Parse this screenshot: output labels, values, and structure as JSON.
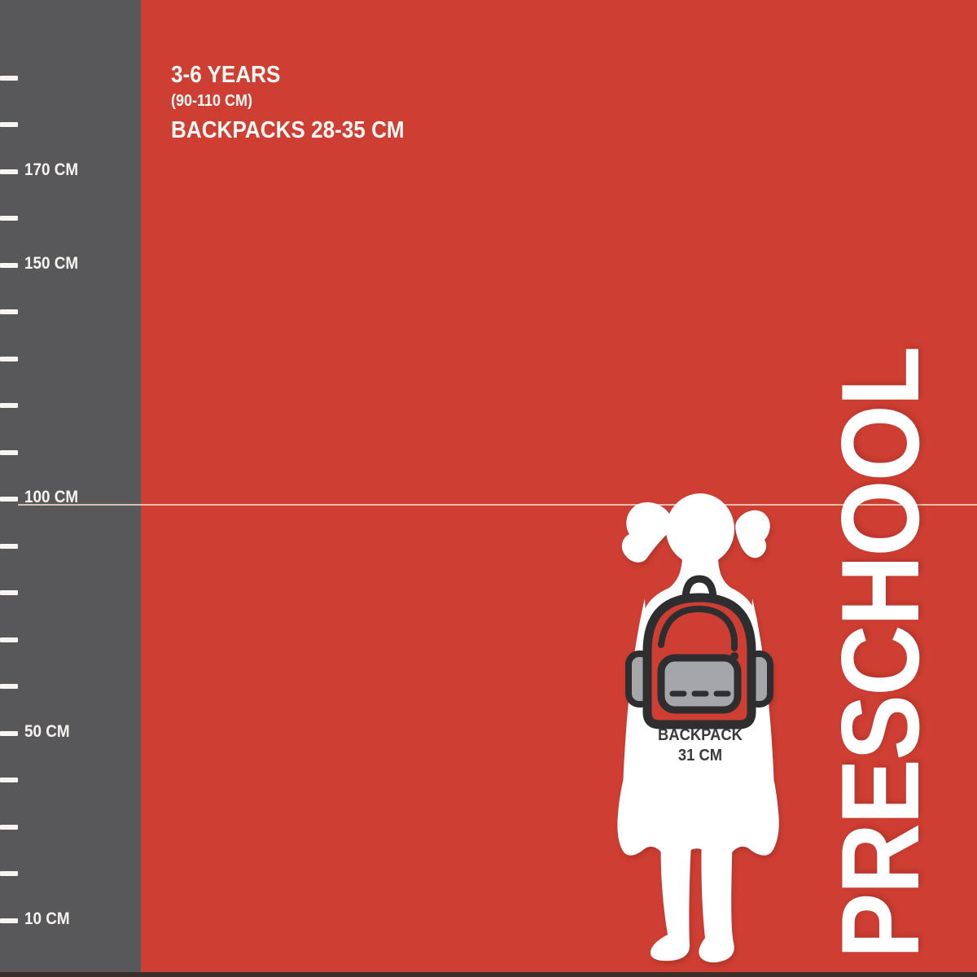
{
  "header": {
    "age_range": "3-6 YEARS",
    "height_range": "(90-110 CM)",
    "backpack_size_range": "BACKPACKS 28-35 CM"
  },
  "category_label": "PRESCHOOL",
  "figure": {
    "backpack_caption_line1": "BACKPACK",
    "backpack_caption_line2": "31 CM"
  },
  "ruler": {
    "unit": "CM",
    "reference_line_cm": 100,
    "ticks": [
      {
        "cm": 190,
        "label": ""
      },
      {
        "cm": 180,
        "label": ""
      },
      {
        "cm": 170,
        "label": "170 CM"
      },
      {
        "cm": 160,
        "label": ""
      },
      {
        "cm": 150,
        "label": "150 CM"
      },
      {
        "cm": 140,
        "label": ""
      },
      {
        "cm": 130,
        "label": ""
      },
      {
        "cm": 120,
        "label": ""
      },
      {
        "cm": 110,
        "label": ""
      },
      {
        "cm": 100,
        "label": "100 CM"
      },
      {
        "cm": 90,
        "label": ""
      },
      {
        "cm": 80,
        "label": ""
      },
      {
        "cm": 70,
        "label": ""
      },
      {
        "cm": 60,
        "label": ""
      },
      {
        "cm": 50,
        "label": "50 CM"
      },
      {
        "cm": 40,
        "label": ""
      },
      {
        "cm": 30,
        "label": ""
      },
      {
        "cm": 20,
        "label": ""
      },
      {
        "cm": 10,
        "label": "10 CM"
      }
    ]
  },
  "colors": {
    "background": "#cf3e32",
    "ruler_bg": "#58585a",
    "tick": "#f7f4f1",
    "reference_line": "#f0d3c3",
    "text_light": "#ffffff",
    "text_dark": "#3b3b3d",
    "outline_dark": "#2e2e30",
    "pocket_gray": "#a4a6a9",
    "bottom_bar": "#3c2e28"
  }
}
